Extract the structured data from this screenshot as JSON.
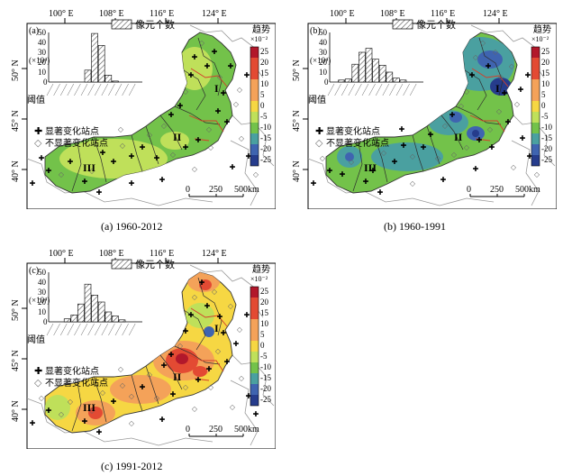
{
  "panels": [
    {
      "key": "a",
      "letter": "(a)",
      "caption": "(a)  1960-2012",
      "top_labels": [
        "100° E",
        "108° E",
        "116° E",
        "124° E"
      ],
      "lat_labels": [
        "50° N",
        "45° N",
        "40° N"
      ],
      "hist_title": "像元个数",
      "hist_unit": "(×10⁴)",
      "hist_yticks": [
        "50",
        "40",
        "30",
        "20",
        "10",
        "0"
      ],
      "hist_xlabel": "阈值",
      "hist_values": [
        0,
        0,
        0,
        0,
        0,
        12,
        49,
        37,
        7,
        1,
        0,
        0,
        0
      ],
      "legend_sig": "显著变化站点",
      "legend_nonsig": "不显著变化站点",
      "region_labels": [
        "I",
        "II",
        "III"
      ],
      "colorbar_title": "趋势",
      "colorbar_unit": "×10⁻²",
      "colorbar_ticks": [
        "25",
        "20",
        "15",
        "10",
        "5",
        "0",
        "-5",
        "-10",
        "-15",
        "-20",
        "-25"
      ],
      "scale_labels": [
        "0",
        "250",
        "500km"
      ]
    },
    {
      "key": "b",
      "letter": "(b)",
      "caption": "(b)  1960-1991",
      "top_labels": [
        "100° E",
        "108° E",
        "116° E",
        "124° E"
      ],
      "lat_labels": [
        "50° N",
        "45° N",
        "40° N"
      ],
      "hist_title": "像元个数",
      "hist_unit": "(×10⁴)",
      "hist_yticks": [
        "50",
        "40",
        "30",
        "20",
        "10",
        "0"
      ],
      "hist_xlabel": "阈值",
      "hist_values": [
        0,
        2,
        3,
        18,
        30,
        34,
        23,
        17,
        10,
        4,
        2,
        0,
        0
      ],
      "legend_sig": "显著变化站点",
      "legend_nonsig": "不显著变化站点",
      "region_labels": [
        "I",
        "II",
        "III"
      ],
      "colorbar_title": "趋势",
      "colorbar_unit": "×10⁻²",
      "colorbar_ticks": [
        "25",
        "20",
        "15",
        "10",
        "5",
        "0",
        "-5",
        "-10",
        "-15",
        "-20",
        "-25"
      ],
      "scale_labels": [
        "0",
        "250",
        "500km"
      ]
    },
    {
      "key": "c",
      "letter": "(c)",
      "caption": "(c)  1991-2012",
      "top_labels": [
        "100° E",
        "108° E",
        "116° E",
        "124° E"
      ],
      "lat_labels": [
        "50° N",
        "45° N",
        "40° N"
      ],
      "hist_title": "像元个数",
      "hist_unit": "(×10⁴)",
      "hist_yticks": [
        "50",
        "40",
        "30",
        "20",
        "10",
        "0"
      ],
      "hist_xlabel": "阈值",
      "hist_values": [
        0,
        0,
        3,
        7,
        18,
        38,
        27,
        20,
        10,
        6,
        2,
        0,
        0
      ],
      "legend_sig": "显著变化站点",
      "legend_nonsig": "不显著变化站点",
      "region_labels": [
        "I",
        "II",
        "III"
      ],
      "colorbar_title": "趋势",
      "colorbar_unit": "×10⁻²",
      "colorbar_ticks": [
        "25",
        "20",
        "15",
        "10",
        "5",
        "0",
        "-5",
        "-10",
        "-15",
        "-20",
        "-25"
      ],
      "scale_labels": [
        "0",
        "250",
        "500km"
      ]
    }
  ],
  "colors": {
    "c25": "#b2182b",
    "c15": "#e34a33",
    "c5": "#f4a259",
    "c0": "#f6d743",
    "cm5": "#bfe05a",
    "cm10": "#73c24a",
    "cm15": "#4aa0a0",
    "cm20": "#3f64b0",
    "cm25": "#263c8c"
  },
  "chart_data": [
    {
      "type": "bar",
      "panel": "a",
      "values": [
        0,
        0,
        0,
        0,
        0,
        12,
        49,
        37,
        7,
        1,
        0,
        0,
        0
      ],
      "ylim": [
        0,
        50
      ]
    },
    {
      "type": "bar",
      "panel": "b",
      "values": [
        0,
        2,
        3,
        18,
        30,
        34,
        23,
        17,
        10,
        4,
        2,
        0,
        0
      ],
      "ylim": [
        0,
        50
      ]
    },
    {
      "type": "bar",
      "panel": "c",
      "values": [
        0,
        0,
        3,
        7,
        18,
        38,
        27,
        20,
        10,
        6,
        2,
        0,
        0
      ],
      "ylim": [
        0,
        50
      ]
    }
  ]
}
